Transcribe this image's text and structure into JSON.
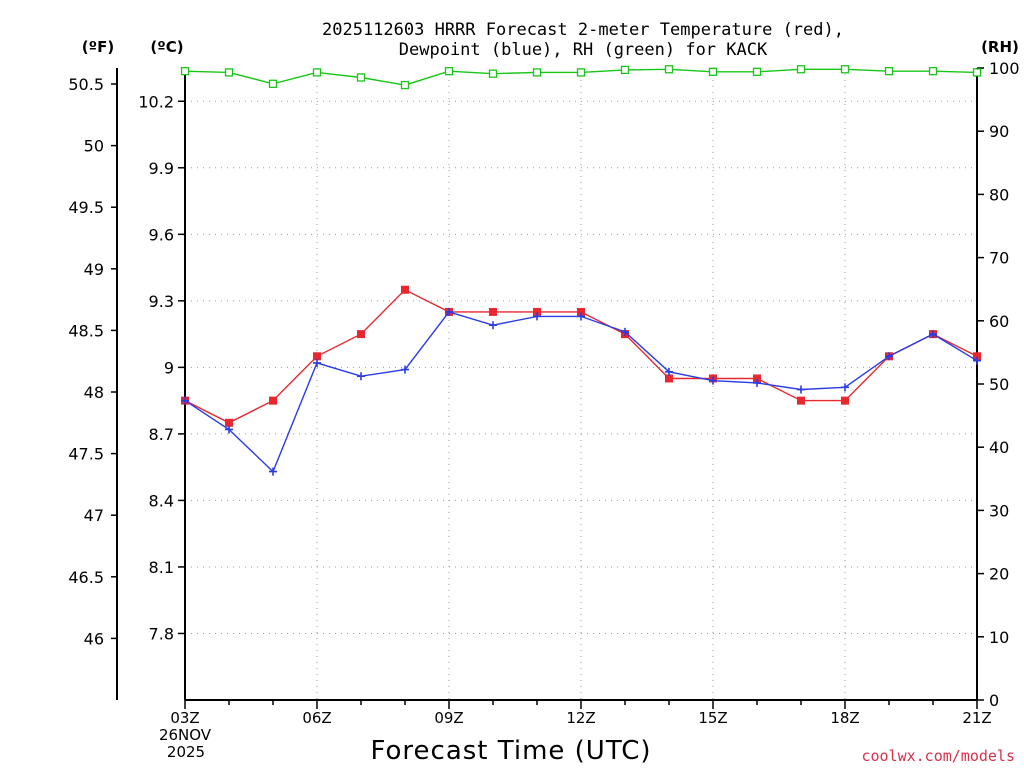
{
  "colors": {
    "temperature": "#e8282e",
    "dewpoint": "#2a3ce6",
    "rh": "#18c618",
    "grid": "#9a9a9a",
    "credit": "#d8324a"
  },
  "chart_data": {
    "type": "line",
    "title_line1": "2025112603 HRRR Forecast 2-meter Temperature (red),",
    "title_line2": "Dewpoint (blue), RH (green) for KACK",
    "xlabel": "Forecast Time (UTC)",
    "credit": "coolwx.com/models",
    "x_hours": [
      0,
      1,
      2,
      3,
      4,
      5,
      6,
      7,
      8,
      9,
      10,
      11,
      12,
      13,
      14,
      15,
      16,
      17,
      18
    ],
    "x_ticks": [
      {
        "hour": 0,
        "label": "03Z"
      },
      {
        "hour": 3,
        "label": "06Z"
      },
      {
        "hour": 6,
        "label": "09Z"
      },
      {
        "hour": 9,
        "label": "12Z"
      },
      {
        "hour": 12,
        "label": "15Z"
      },
      {
        "hour": 15,
        "label": "18Z"
      },
      {
        "hour": 18,
        "label": "21Z"
      }
    ],
    "date_line1": "26NOV",
    "date_line2": "2025",
    "axes": {
      "celsius": {
        "label": "(ºC)",
        "range": [
          7.5,
          10.35
        ],
        "ticks": [
          "7.8",
          "8.1",
          "8.4",
          "8.7",
          "9",
          "9.3",
          "9.6",
          "9.9",
          "10.2"
        ]
      },
      "fahrenheit": {
        "label": "(ºF)",
        "ticks": [
          "46",
          "46.5",
          "47",
          "47.5",
          "48",
          "48.5",
          "49",
          "49.5",
          "50",
          "50.5"
        ]
      },
      "rh": {
        "label": "(RH)",
        "range": [
          0,
          100
        ],
        "ticks": [
          "0",
          "10",
          "20",
          "30",
          "40",
          "50",
          "60",
          "70",
          "80",
          "90",
          "100"
        ]
      }
    },
    "series": [
      {
        "name": "Temperature",
        "unit": "C",
        "marker": "square",
        "values": [
          8.85,
          8.75,
          8.85,
          9.05,
          9.15,
          9.35,
          9.25,
          9.25,
          9.25,
          9.25,
          9.15,
          8.95,
          8.95,
          8.95,
          8.85,
          8.85,
          9.05,
          9.15,
          9.05
        ]
      },
      {
        "name": "Dewpoint",
        "unit": "C",
        "marker": "plus",
        "values": [
          8.85,
          8.72,
          8.53,
          9.02,
          8.96,
          8.99,
          9.25,
          9.19,
          9.23,
          9.23,
          9.16,
          8.98,
          8.94,
          8.93,
          8.9,
          8.91,
          9.05,
          9.15,
          9.03
        ]
      },
      {
        "name": "RH",
        "unit": "%",
        "marker": "open-square",
        "values": [
          99.5,
          99.3,
          97.5,
          99.3,
          98.5,
          97.3,
          99.5,
          99.1,
          99.3,
          99.3,
          99.7,
          99.8,
          99.4,
          99.4,
          99.8,
          99.8,
          99.5,
          99.5,
          99.3
        ]
      }
    ]
  }
}
